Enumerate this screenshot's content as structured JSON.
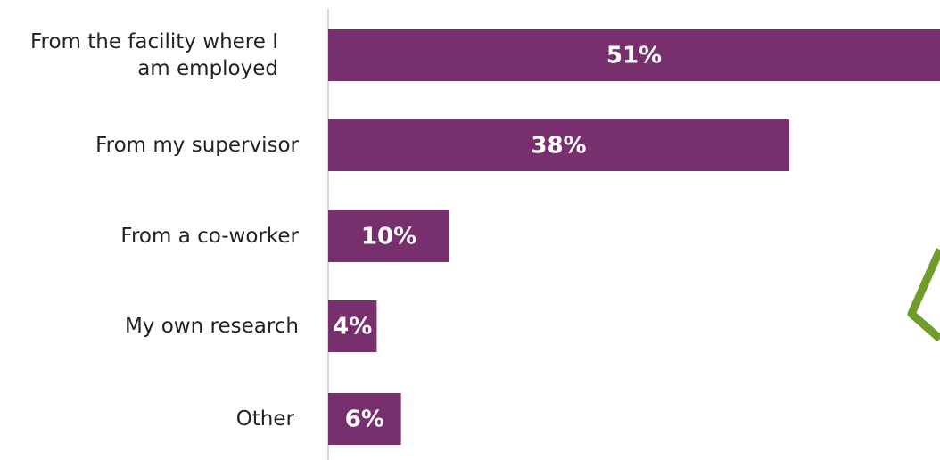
{
  "chart_data": {
    "type": "bar",
    "orientation": "horizontal",
    "categories": [
      "From the facility where I am employed",
      "From my supervisor",
      "From a co-worker",
      "My own research",
      "Other"
    ],
    "values": [
      51,
      38,
      10,
      4,
      6
    ],
    "value_labels": [
      "51%",
      "38%",
      "10%",
      "4%",
      "6%"
    ],
    "color": "#782f6e",
    "xlim": [
      0,
      50
    ]
  }
}
